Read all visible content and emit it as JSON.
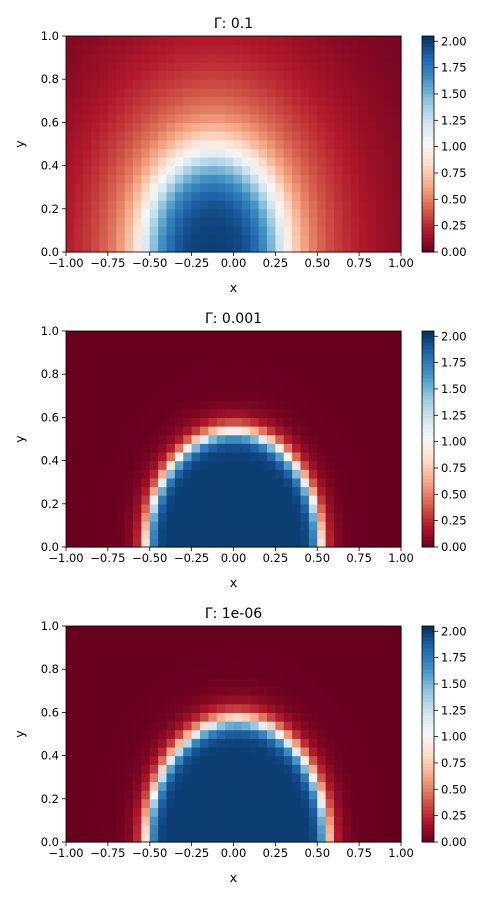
{
  "chart_data": [
    {
      "type": "heatmap",
      "title": "Γ: 0.1",
      "xlabel": "x",
      "ylabel": "y",
      "xlim": [
        -1.0,
        1.0
      ],
      "ylim": [
        0.0,
        1.0
      ],
      "xticks": [
        "−1.00",
        "−0.75",
        "−0.50",
        "−0.25",
        "0.00",
        "0.25",
        "0.50",
        "0.75",
        "1.00"
      ],
      "yticks": [
        "0.0",
        "0.2",
        "0.4",
        "0.6",
        "0.8",
        "1.0"
      ],
      "colorbar": {
        "colormap": "RdBu",
        "range": [
          0.0,
          2.05
        ],
        "ticks": [
          "0.00",
          "0.25",
          "0.50",
          "0.75",
          "1.00",
          "1.25",
          "1.50",
          "1.75",
          "2.00"
        ]
      },
      "field": {
        "center_x": -0.12,
        "radius_x": 0.36,
        "radius_y": 0.4,
        "peak": 2.0,
        "edge_sharpness": 0.18,
        "outer_spread": 1.0
      },
      "grid_cells": [
        40,
        25
      ]
    },
    {
      "type": "heatmap",
      "title": "Γ: 0.001",
      "xlabel": "x",
      "ylabel": "y",
      "xlim": [
        -1.0,
        1.0
      ],
      "ylim": [
        0.0,
        1.0
      ],
      "xticks": [
        "−1.00",
        "−0.75",
        "−0.50",
        "−0.25",
        "0.00",
        "0.25",
        "0.50",
        "0.75",
        "1.00"
      ],
      "yticks": [
        "0.0",
        "0.2",
        "0.4",
        "0.6",
        "0.8",
        "1.0"
      ],
      "colorbar": {
        "colormap": "RdBu",
        "range": [
          0.0,
          2.05
        ],
        "ticks": [
          "0.00",
          "0.25",
          "0.50",
          "0.75",
          "1.00",
          "1.25",
          "1.50",
          "1.75",
          "2.00"
        ]
      },
      "field": {
        "center_x": 0.0,
        "radius_x": 0.5,
        "radius_y": 0.52,
        "peak": 2.0,
        "edge_sharpness": 0.04,
        "outer_spread": 0.1
      },
      "grid_cells": [
        40,
        25
      ]
    },
    {
      "type": "heatmap",
      "title": "Γ: 1e-06",
      "xlabel": "x",
      "ylabel": "y",
      "xlim": [
        -1.0,
        1.0
      ],
      "ylim": [
        0.0,
        1.0
      ],
      "xticks": [
        "−1.00",
        "−0.75",
        "−0.50",
        "−0.25",
        "0.00",
        "0.25",
        "0.50",
        "0.75",
        "1.00"
      ],
      "yticks": [
        "0.0",
        "0.2",
        "0.4",
        "0.6",
        "0.8",
        "1.0"
      ],
      "colorbar": {
        "colormap": "RdBu",
        "range": [
          0.0,
          2.05
        ],
        "ticks": [
          "0.00",
          "0.25",
          "0.50",
          "0.75",
          "1.00",
          "1.25",
          "1.50",
          "1.75",
          "2.00"
        ]
      },
      "field": {
        "center_x": 0.02,
        "radius_x": 0.52,
        "radius_y": 0.55,
        "peak": 2.0,
        "edge_sharpness": 0.04,
        "outer_spread": 0.1
      },
      "grid_cells": [
        40,
        25
      ]
    }
  ]
}
